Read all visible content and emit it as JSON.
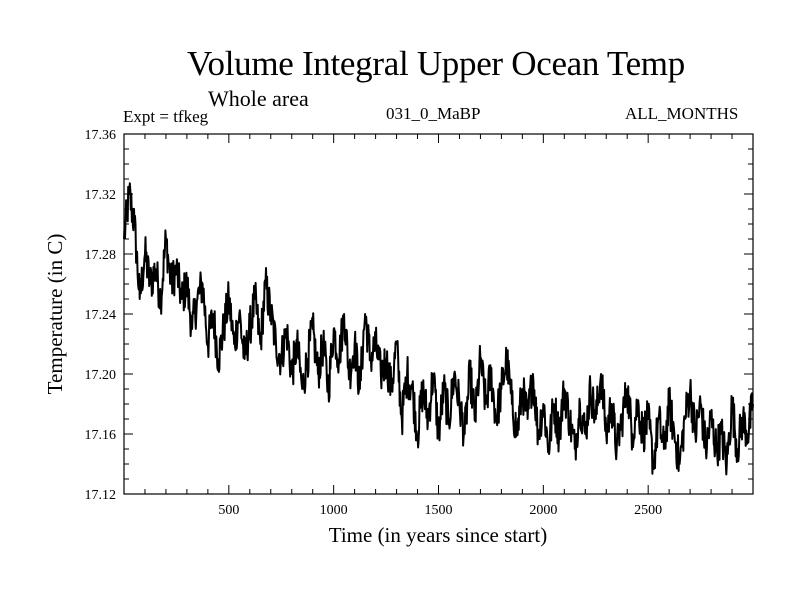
{
  "header": {
    "title": "Volume Integral Upper Ocean Temp",
    "subtitle": "Whole area",
    "experiment": "Expt = tfkeg",
    "run_id": "031_0_MaBP",
    "months": "ALL_MONTHS"
  },
  "chart_data": {
    "type": "line",
    "title": "Volume Integral Upper Ocean Temp",
    "subtitle": "Whole area",
    "xlabel": "Time (in years since start)",
    "ylabel": "Temperature (in C)",
    "xlim": [
      0,
      3000
    ],
    "ylim": [
      17.12,
      17.36
    ],
    "x_ticks": [
      500,
      1000,
      1500,
      2000,
      2500
    ],
    "y_ticks": [
      "17.12",
      "17.16",
      "17.20",
      "17.24",
      "17.28",
      "17.32",
      "17.36"
    ],
    "grid": false,
    "legend": "none",
    "line_color": "#000000",
    "series": [
      {
        "x": [
          0,
          25,
          50,
          75,
          100,
          125,
          150,
          175,
          200,
          225,
          250,
          275,
          300,
          325,
          350,
          375,
          400,
          425,
          450,
          475,
          500,
          525,
          550,
          575,
          600,
          625,
          650,
          675,
          700,
          725,
          750,
          775,
          800,
          825,
          850,
          875,
          900,
          925,
          950,
          975,
          1000,
          1025,
          1050,
          1075,
          1100,
          1125,
          1150,
          1175,
          1200,
          1225,
          1250,
          1275,
          1300,
          1325,
          1350,
          1375,
          1400,
          1425,
          1450,
          1475,
          1500,
          1525,
          1550,
          1575,
          1600,
          1625,
          1650,
          1675,
          1700,
          1725,
          1750,
          1775,
          1800,
          1825,
          1850,
          1875,
          1900,
          1925,
          1950,
          1975,
          2000,
          2025,
          2050,
          2075,
          2100,
          2125,
          2150,
          2175,
          2200,
          2225,
          2250,
          2275,
          2300,
          2325,
          2350,
          2375,
          2400,
          2425,
          2450,
          2475,
          2500,
          2525,
          2550,
          2575,
          2600,
          2625,
          2650,
          2675,
          2700,
          2725,
          2750,
          2775,
          2800,
          2825,
          2850,
          2875,
          2900,
          2925,
          2950,
          2975,
          3000
        ],
        "y": [
          17.29,
          17.32,
          17.3,
          17.25,
          17.28,
          17.26,
          17.27,
          17.25,
          17.29,
          17.26,
          17.27,
          17.25,
          17.26,
          17.23,
          17.25,
          17.26,
          17.22,
          17.24,
          17.21,
          17.23,
          17.25,
          17.22,
          17.24,
          17.21,
          17.23,
          17.25,
          17.22,
          17.26,
          17.24,
          17.22,
          17.21,
          17.23,
          17.2,
          17.22,
          17.19,
          17.21,
          17.23,
          17.2,
          17.22,
          17.19,
          17.23,
          17.21,
          17.24,
          17.2,
          17.22,
          17.19,
          17.24,
          17.21,
          17.22,
          17.2,
          17.21,
          17.19,
          17.22,
          17.17,
          17.2,
          17.19,
          17.16,
          17.19,
          17.17,
          17.2,
          17.16,
          17.19,
          17.17,
          17.2,
          17.18,
          17.16,
          17.2,
          17.17,
          17.21,
          17.18,
          17.2,
          17.17,
          17.19,
          17.21,
          17.18,
          17.16,
          17.19,
          17.17,
          17.2,
          17.16,
          17.18,
          17.15,
          17.18,
          17.16,
          17.19,
          17.17,
          17.15,
          17.18,
          17.16,
          17.19,
          17.17,
          17.2,
          17.16,
          17.18,
          17.15,
          17.17,
          17.19,
          17.16,
          17.18,
          17.16,
          17.17,
          17.14,
          17.17,
          17.15,
          17.18,
          17.16,
          17.14,
          17.17,
          17.19,
          17.16,
          17.18,
          17.15,
          17.17,
          17.15,
          17.16,
          17.14,
          17.18,
          17.15,
          17.17,
          17.16,
          17.18
        ]
      }
    ]
  }
}
